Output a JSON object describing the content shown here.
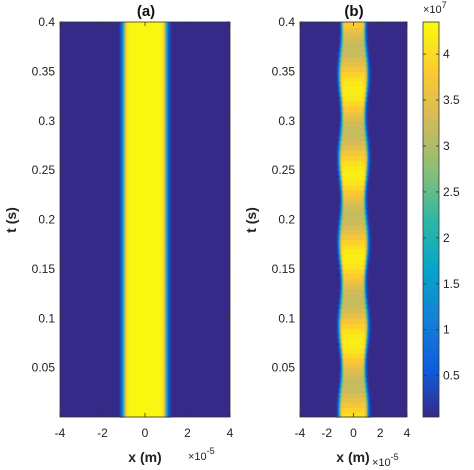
{
  "chart_data": [
    {
      "type": "heatmap",
      "title": "(a)",
      "xlabel": "x (m)",
      "ylabel": "t (s)",
      "x_multiplier": "×10",
      "x_exponent": "-5",
      "xlim": [
        -4,
        4
      ],
      "ylim": [
        0,
        0.4
      ],
      "xticks": [
        "-4",
        "-2",
        "0",
        "2",
        "4"
      ],
      "yticks": [
        "0.05",
        "0.1",
        "0.15",
        "0.2",
        "0.25",
        "0.3",
        "0.35",
        "0.4"
      ],
      "band_center": 0,
      "band_halfwidth": 1.0,
      "peak_value": 43000000.0,
      "background_value": 0,
      "modulated": false
    },
    {
      "type": "heatmap",
      "title": "(b)",
      "xlabel": "x (m)",
      "ylabel": "t (s)",
      "x_multiplier": "×10",
      "x_exponent": "-5",
      "xlim": [
        -4,
        4
      ],
      "ylim": [
        0,
        0.4
      ],
      "xticks": [
        "-4",
        "-2",
        "0",
        "2",
        "4"
      ],
      "yticks": [
        "0.05",
        "0.1",
        "0.15",
        "0.2",
        "0.25",
        "0.3",
        "0.35",
        "0.4"
      ],
      "band_center": 0,
      "band_halfwidth": 1.0,
      "peak_value": 43000000.0,
      "background_value": 0,
      "modulated": true
    }
  ],
  "colorbar": {
    "ticks": [
      "0.5",
      "1",
      "1.5",
      "2",
      "2.5",
      "3",
      "3.5",
      "4"
    ],
    "tick_values": [
      0.5,
      1,
      1.5,
      2,
      2.5,
      3,
      3.5,
      4
    ],
    "range": [
      0.05,
      4.35
    ],
    "multiplier": "×10",
    "exponent": "7",
    "colormap": "parula"
  }
}
